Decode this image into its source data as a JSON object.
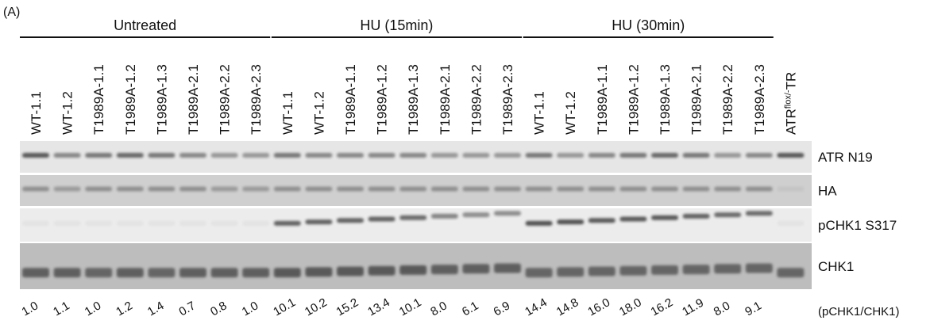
{
  "panel_label": "(A)",
  "groups": [
    {
      "label": "Untreated"
    },
    {
      "label": "HU (15min)"
    },
    {
      "label": "HU (30min)"
    }
  ],
  "lanes": [
    "WT-1.1",
    "WT-1.2",
    "T1989A-1.1",
    "T1989A-1.2",
    "T1989A-1.3",
    "T1989A-2.1",
    "T1989A-2.2",
    "T1989A-2.3",
    "WT-1.1",
    "WT-1.2",
    "T1989A-1.1",
    "T1989A-1.2",
    "T1989A-1.3",
    "T1989A-2.1",
    "T1989A-2.2",
    "T1989A-2.3",
    "WT-1.1",
    "WT-1.2",
    "T1989A-1.1",
    "T1989A-1.2",
    "T1989A-1.3",
    "T1989A-2.1",
    "T1989A-2.2",
    "T1989A-2.3"
  ],
  "control_lane": {
    "base": "ATR",
    "superscript": "flox/-",
    "suffix": "TR"
  },
  "blots": [
    "ATR N19",
    "HA",
    "pCHK1 S317",
    "CHK1"
  ],
  "quantification": {
    "label": "(pCHK1/CHK1)",
    "values": [
      "1.0",
      "1.1",
      "1.0",
      "1.2",
      "1.4",
      "0.7",
      "0.8",
      "1.0",
      "10.1",
      "10.2",
      "15.2",
      "13.4",
      "10.1",
      "8.0",
      "6.1",
      "6.9",
      "14.4",
      "14.8",
      "16.0",
      "18.0",
      "16.2",
      "11.9",
      "8.0",
      "9.1"
    ]
  }
}
